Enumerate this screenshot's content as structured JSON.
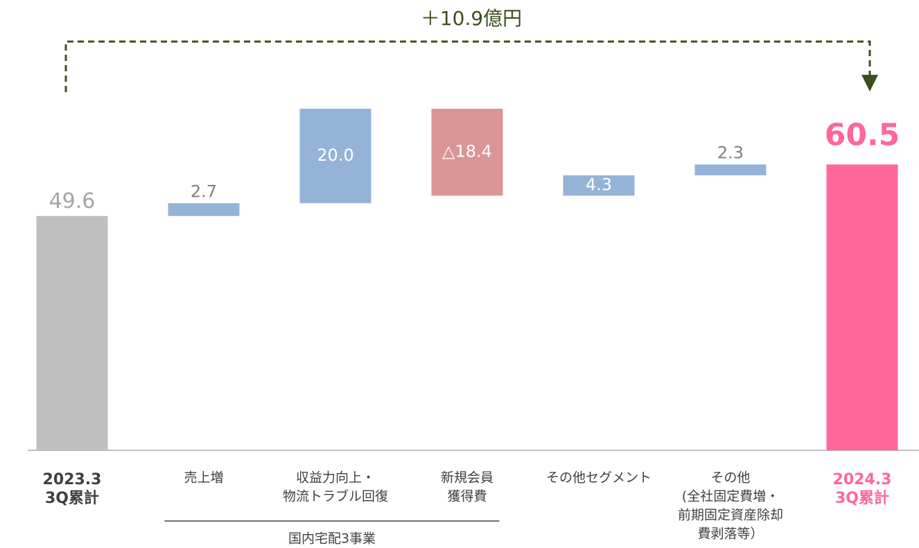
{
  "chart_data": {
    "type": "waterfall",
    "annotation": "＋10.9億円",
    "categories": [
      [
        "2023.3",
        "3Q累計"
      ],
      [
        "売上増"
      ],
      [
        "収益力向上・",
        "物流トラブル回復"
      ],
      [
        "新規会員",
        "獲得費"
      ],
      [
        "その他セグメント"
      ],
      [
        "その他",
        "(全社固定費増・",
        "前期固定資産除却",
        "費剥落等）"
      ],
      [
        "2024.3",
        "3Q累計"
      ]
    ],
    "measures": [
      "absolute",
      "relative",
      "relative",
      "relative",
      "relative",
      "relative",
      "total"
    ],
    "values": [
      49.6,
      2.7,
      20.0,
      -18.4,
      4.3,
      2.3,
      60.5
    ],
    "value_labels": [
      "49.6",
      "2.7",
      "20.0",
      "△18.4",
      "4.3",
      "2.3",
      "60.5"
    ],
    "colors": [
      "#bfbfbf",
      "#95b3d7",
      "#95b3d7",
      "#da9694",
      "#95b3d7",
      "#95b3d7",
      "#ff6699"
    ],
    "group": {
      "label": "国内宅配3事業",
      "from": 1,
      "to": 3
    }
  }
}
